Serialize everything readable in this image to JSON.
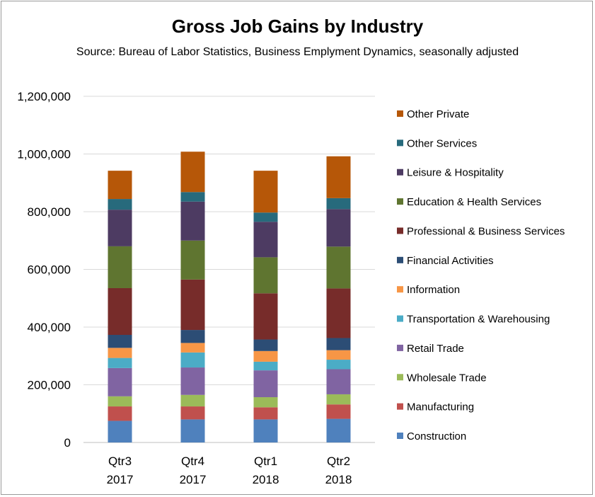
{
  "chart_data": {
    "type": "bar",
    "stacked": true,
    "title": "Gross Job Gains by Industry",
    "subtitle": "Source:  Bureau of Labor Statistics, Business Emplyment Dynamics, seasonally adjusted",
    "xlabel": "",
    "ylabel": "",
    "ylim": [
      0,
      1200000
    ],
    "yticks": [
      0,
      200000,
      400000,
      600000,
      800000,
      1000000,
      1200000
    ],
    "ytick_labels": [
      "0",
      "200,000",
      "400,000",
      "600,000",
      "800,000",
      "1,000,000",
      "1,200,000"
    ],
    "grid": true,
    "legend_position": "right",
    "categories": [
      {
        "line1": "Qtr3",
        "line2": "2017"
      },
      {
        "line1": "Qtr4",
        "line2": "2017"
      },
      {
        "line1": "Qtr1",
        "line2": "2018"
      },
      {
        "line1": "Qtr2",
        "line2": "2018"
      }
    ],
    "series": [
      {
        "name": "Construction",
        "color": "#4f81bd",
        "values": [
          75000,
          80000,
          80000,
          82000
        ]
      },
      {
        "name": "Manufacturing",
        "color": "#c0504d",
        "values": [
          50000,
          45000,
          42000,
          50000
        ]
      },
      {
        "name": "Wholesale Trade",
        "color": "#9bbb59",
        "values": [
          35000,
          40000,
          35000,
          35000
        ]
      },
      {
        "name": "Retail Trade",
        "color": "#8064a2",
        "values": [
          98000,
          95000,
          93000,
          87000
        ]
      },
      {
        "name": "Transportation & Warehousing",
        "color": "#4bacc6",
        "values": [
          35000,
          52000,
          30000,
          33000
        ]
      },
      {
        "name": "Information",
        "color": "#f79646",
        "values": [
          35000,
          33000,
          37000,
          33000
        ]
      },
      {
        "name": "Financial Activities",
        "color": "#2c4d75",
        "values": [
          45000,
          45000,
          40000,
          42000
        ]
      },
      {
        "name": "Professional & Business Services",
        "color": "#772c2a",
        "values": [
          162000,
          175000,
          160000,
          172000
        ]
      },
      {
        "name": "Education & Health Services",
        "color": "#5f7530",
        "values": [
          145000,
          135000,
          125000,
          145000
        ]
      },
      {
        "name": "Leisure & Hospitality",
        "color": "#4d3b62",
        "values": [
          127000,
          135000,
          123000,
          130000
        ]
      },
      {
        "name": "Other Services",
        "color": "#276a7c",
        "values": [
          37000,
          33000,
          32000,
          38000
        ]
      },
      {
        "name": "Other Private",
        "color": "#b65708",
        "values": [
          98000,
          140000,
          145000,
          145000
        ]
      }
    ]
  }
}
